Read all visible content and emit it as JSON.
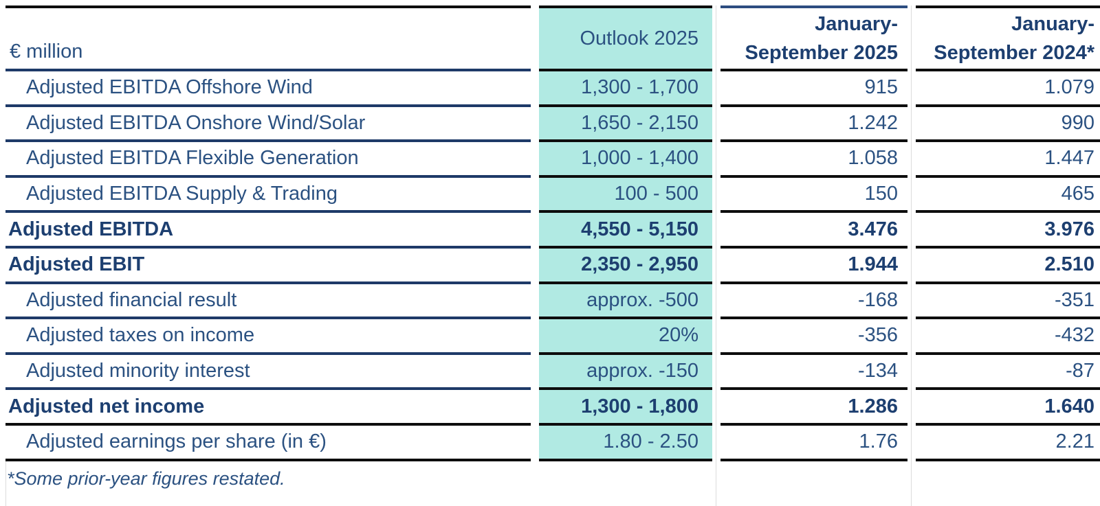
{
  "table": {
    "unit_label": "€ million",
    "columns": {
      "outlook": "Outlook 2025",
      "p2025_line1": "January-",
      "p2025_line2": "September 2025",
      "p2024_line1": "January-",
      "p2024_line2": "September 2024*"
    },
    "rows": [
      {
        "label": "Adjusted EBITDA Offshore Wind",
        "outlook": "1,300 - 1,700",
        "y2025": "915",
        "y2024": "1.079"
      },
      {
        "label": "Adjusted EBITDA Onshore Wind/Solar",
        "outlook": "1,650 - 2,150",
        "y2025": "1.242",
        "y2024": "990"
      },
      {
        "label": "Adjusted EBITDA Flexible Generation",
        "outlook": "1,000 - 1,400",
        "y2025": "1.058",
        "y2024": "1.447"
      },
      {
        "label": "Adjusted EBITDA Supply & Trading",
        "outlook": "100 - 500",
        "y2025": "150",
        "y2024": "465"
      },
      {
        "label": "Adjusted EBITDA",
        "outlook": "4,550 - 5,150",
        "y2025": "3.476",
        "y2024": "3.976"
      },
      {
        "label": "Adjusted EBIT",
        "outlook": "2,350 - 2,950",
        "y2025": "1.944",
        "y2024": "2.510"
      },
      {
        "label": "Adjusted financial result",
        "outlook": "approx. -500",
        "y2025": "-168",
        "y2024": "-351"
      },
      {
        "label": "Adjusted taxes on income",
        "outlook": "20%",
        "y2025": "-356",
        "y2024": "-432"
      },
      {
        "label": "Adjusted minority interest",
        "outlook": "approx. -150",
        "y2025": "-134",
        "y2024": "-87"
      },
      {
        "label": "Adjusted net income",
        "outlook": "1,300 - 1,800",
        "y2025": "1.286",
        "y2024": "1.640"
      },
      {
        "label": "Adjusted earnings per share (in €)",
        "outlook": "1.80 - 2.50",
        "y2025": "1.76",
        "y2024": "2.21"
      }
    ]
  },
  "footnote": "*Some prior-year figures restated.",
  "colors": {
    "outlook_highlight_teal": "#b1eae3",
    "text_navy_regular": "#2b5181",
    "text_navy_bold": "#1d3f70",
    "border_navy": "#1e3a68",
    "border_black": "#0d0d0d",
    "border_blue_top": "#2d4d80",
    "guide_line_gray": "#dcdcdc"
  }
}
